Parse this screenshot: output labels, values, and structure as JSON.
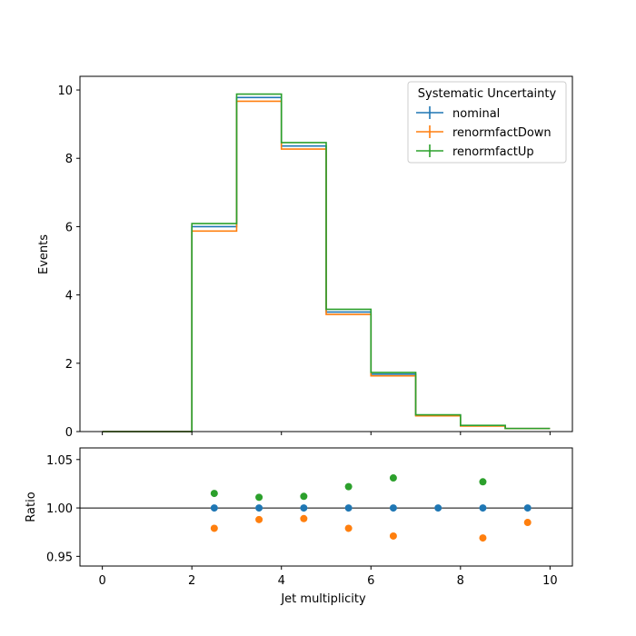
{
  "chart_data": [
    {
      "type": "line",
      "panel": "main",
      "xlabel": "",
      "ylabel": "Events",
      "xlim": [
        -0.5,
        10.5
      ],
      "ylim": [
        0,
        10.4
      ],
      "x_ticks": [
        "0",
        "2",
        "4",
        "6",
        "8",
        "10"
      ],
      "y_ticks": [
        "0",
        "2",
        "4",
        "6",
        "8",
        "10"
      ],
      "bin_edges": [
        0,
        1,
        2,
        3,
        4,
        5,
        6,
        7,
        8,
        9,
        10
      ],
      "legend": {
        "title": "Systematic Uncertainty",
        "placement": "top-right"
      },
      "series": [
        {
          "name": "nominal",
          "color": "#1f77b4",
          "values": [
            0,
            0,
            6.0,
            9.78,
            8.36,
            3.5,
            1.68,
            0.48,
            0.17,
            0.09
          ]
        },
        {
          "name": "renormfactDown",
          "color": "#ff7f0e",
          "values": [
            0,
            0,
            5.87,
            9.67,
            8.27,
            3.43,
            1.63,
            0.46,
            0.16,
            0.09
          ]
        },
        {
          "name": "renormfactUp",
          "color": "#2ca02c",
          "values": [
            0,
            0,
            6.09,
            9.88,
            8.46,
            3.58,
            1.73,
            0.49,
            0.18,
            0.09
          ]
        }
      ]
    },
    {
      "type": "scatter",
      "panel": "ratio",
      "xlabel": "Jet multiplicity",
      "ylabel": "Ratio",
      "xlim": [
        -0.5,
        10.5
      ],
      "ylim": [
        0.94,
        1.062
      ],
      "x_ticks": [
        "0",
        "2",
        "4",
        "6",
        "8",
        "10"
      ],
      "y_ticks": [
        "0.95",
        "1.00",
        "1.05"
      ],
      "reference_line": 1.0,
      "series": [
        {
          "name": "nominal",
          "color": "#1f77b4",
          "x": [
            2.5,
            3.5,
            4.5,
            5.5,
            6.5,
            7.5,
            8.5,
            9.5
          ],
          "y": [
            1.0,
            1.0,
            1.0,
            1.0,
            1.0,
            1.0,
            1.0,
            1.0
          ]
        },
        {
          "name": "renormfactDown",
          "color": "#ff7f0e",
          "x": [
            2.5,
            3.5,
            4.5,
            5.5,
            6.5,
            8.5,
            9.5
          ],
          "y": [
            0.979,
            0.988,
            0.989,
            0.979,
            0.971,
            0.969,
            0.985
          ]
        },
        {
          "name": "renormfactUp",
          "color": "#2ca02c",
          "x": [
            2.5,
            3.5,
            4.5,
            5.5,
            6.5,
            8.5
          ],
          "y": [
            1.015,
            1.011,
            1.012,
            1.022,
            1.031,
            1.027
          ]
        }
      ]
    }
  ]
}
